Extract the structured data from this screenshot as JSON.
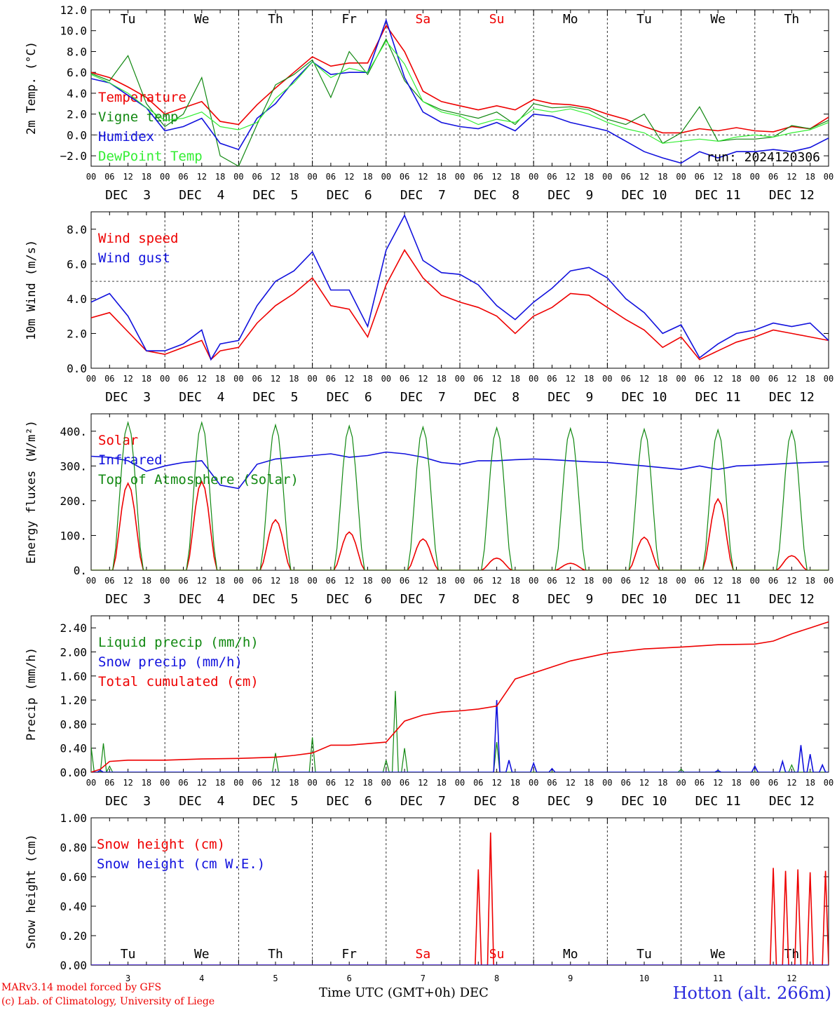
{
  "footer": {
    "model": "MARv3.14 model forced by GFS",
    "lab": "(c) Lab. of Climatology, University of Liege",
    "station": "Hotton (alt. 266m)",
    "time_axis": "Time UTC (GMT+0h) DEC"
  },
  "colors": {
    "red": "#ee0000",
    "green": "#118811",
    "blue": "#1111dd",
    "light_green": "#33ee33",
    "grid": "#444444"
  },
  "weekdays": [
    "Tu",
    "We",
    "Th",
    "Fr",
    "Sa",
    "Su",
    "Mo",
    "Tu",
    "We",
    "Th"
  ],
  "weekend_days": [
    4,
    5
  ],
  "dates": [
    "DEC  3",
    "DEC  4",
    "DEC  5",
    "DEC  6",
    "DEC  7",
    "DEC  8",
    "DEC  9",
    "DEC 10",
    "DEC 11",
    "DEC 12"
  ],
  "day_numbers": [
    "3",
    "4",
    "5",
    "6",
    "7",
    "8",
    "9",
    "10",
    "11",
    "12"
  ],
  "hour_ticks": [
    "00",
    "06",
    "12",
    "18"
  ],
  "chart_data": [
    {
      "type": "line",
      "ylabel": "2m Temp. (°C)",
      "ylim": [
        -3,
        12
      ],
      "yticks": [
        -2,
        0,
        2,
        4,
        6,
        8,
        10,
        12
      ],
      "ytick_labels": [
        "−2.0",
        "0.0",
        "2.0",
        "4.0",
        "6.0",
        "8.0",
        "10.0",
        "12.0"
      ],
      "ref_line": 0,
      "annotation": "run: 2024120306",
      "x": [
        0,
        6,
        12,
        18,
        24,
        30,
        36,
        42,
        48,
        54,
        60,
        66,
        72,
        78,
        84,
        90,
        96,
        102,
        108,
        114,
        120,
        126,
        132,
        138,
        144,
        150,
        156,
        162,
        168,
        174,
        180,
        186,
        192,
        198,
        204,
        210,
        216,
        222,
        228,
        234,
        240
      ],
      "series": [
        {
          "name": "Temperature",
          "color": "red",
          "values": [
            6.0,
            5.5,
            4.6,
            3.6,
            2.0,
            2.6,
            3.2,
            1.3,
            1.0,
            2.9,
            4.5,
            6.0,
            7.5,
            6.6,
            6.9,
            6.9,
            10.5,
            8.0,
            4.2,
            3.2,
            2.8,
            2.4,
            2.8,
            2.4,
            3.4,
            3.0,
            2.9,
            2.6,
            2.0,
            1.5,
            0.8,
            0.2,
            0.2,
            0.6,
            0.4,
            0.7,
            0.4,
            0.3,
            0.8,
            0.6,
            1.7
          ]
        },
        {
          "name": "Vigne temp",
          "color": "green",
          "values": [
            5.9,
            5.2,
            7.6,
            3.0,
            0.8,
            2.0,
            5.5,
            -2.0,
            -3.0,
            1.0,
            4.8,
            5.8,
            7.2,
            3.6,
            8.0,
            5.8,
            9.2,
            5.2,
            3.2,
            2.4,
            2.0,
            1.6,
            2.2,
            1.0,
            3.0,
            2.6,
            2.7,
            2.4,
            1.5,
            1.0,
            2.0,
            -0.8,
            0.2,
            2.7,
            -0.6,
            -0.4,
            -0.4,
            -0.2,
            0.9,
            0.6,
            1.4
          ]
        },
        {
          "name": "Humidex",
          "color": "blue",
          "values": [
            5.4,
            5.0,
            3.8,
            2.6,
            0.4,
            0.8,
            1.6,
            -0.8,
            -1.4,
            1.6,
            3.0,
            5.2,
            7.0,
            5.8,
            6.0,
            6.0,
            11.0,
            5.5,
            2.2,
            1.2,
            0.8,
            0.6,
            1.2,
            0.4,
            2.0,
            1.8,
            1.2,
            0.8,
            0.4,
            -0.6,
            -1.6,
            -2.2,
            -2.7,
            -1.6,
            -2.2,
            -1.6,
            -1.6,
            -1.4,
            -1.6,
            -1.2,
            -0.3
          ]
        },
        {
          "name": "DewPoint Temp",
          "color": "light_green",
          "values": [
            5.8,
            5.0,
            4.0,
            2.6,
            1.4,
            1.6,
            2.2,
            0.8,
            0.5,
            1.2,
            3.5,
            5.0,
            7.0,
            5.5,
            6.4,
            6.0,
            9.0,
            6.8,
            3.2,
            2.2,
            1.8,
            1.0,
            1.5,
            1.2,
            2.5,
            2.2,
            2.5,
            2.0,
            1.2,
            0.6,
            0.2,
            -0.8,
            -0.6,
            -0.4,
            -0.6,
            -0.2,
            0.0,
            -0.2,
            0.2,
            0.5,
            1.2
          ]
        }
      ]
    },
    {
      "type": "line",
      "ylabel": "10m Wind (m/s)",
      "ylim": [
        0,
        9
      ],
      "yticks": [
        0,
        2,
        4,
        6,
        8
      ],
      "ytick_labels": [
        "0.0",
        "2.0",
        "4.0",
        "6.0",
        "8.0"
      ],
      "ref_line": 5,
      "x": [
        0,
        6,
        12,
        18,
        24,
        30,
        36,
        39,
        42,
        48,
        54,
        60,
        66,
        72,
        78,
        84,
        90,
        96,
        102,
        108,
        114,
        120,
        126,
        132,
        138,
        144,
        150,
        156,
        162,
        168,
        174,
        180,
        186,
        192,
        198,
        204,
        210,
        216,
        222,
        228,
        234,
        240
      ],
      "series": [
        {
          "name": "Wind speed",
          "color": "red",
          "values": [
            2.9,
            3.2,
            2.1,
            1.0,
            0.8,
            1.2,
            1.6,
            0.5,
            1.0,
            1.2,
            2.6,
            3.6,
            4.3,
            5.2,
            3.6,
            3.4,
            1.8,
            4.8,
            6.8,
            5.2,
            4.2,
            3.8,
            3.5,
            3.0,
            2.0,
            3.0,
            3.5,
            4.3,
            4.2,
            3.5,
            2.8,
            2.2,
            1.2,
            1.8,
            0.5,
            1.0,
            1.5,
            1.8,
            2.2,
            2.0,
            1.8,
            1.6
          ]
        },
        {
          "name": "Wind gust",
          "color": "blue",
          "values": [
            3.8,
            4.3,
            3.0,
            1.0,
            1.0,
            1.4,
            2.2,
            0.5,
            1.4,
            1.6,
            3.6,
            5.0,
            5.6,
            6.7,
            4.5,
            4.5,
            2.4,
            6.8,
            8.8,
            6.2,
            5.5,
            5.4,
            4.8,
            3.6,
            2.8,
            3.8,
            4.6,
            5.6,
            5.8,
            5.2,
            4.0,
            3.2,
            2.0,
            2.5,
            0.6,
            1.4,
            2.0,
            2.2,
            2.6,
            2.4,
            2.6,
            1.6
          ]
        }
      ]
    },
    {
      "type": "line",
      "ylabel": "Energy fluxes (W/m²)",
      "ylim": [
        0,
        450
      ],
      "yticks": [
        0,
        100,
        200,
        300,
        400
      ],
      "ytick_labels": [
        "0.",
        "100.",
        "200.",
        "300.",
        "400."
      ],
      "series": [
        {
          "name": "Solar",
          "color": "red",
          "peaks": [
            [
              12,
              250
            ],
            [
              36,
              255
            ],
            [
              60,
              145
            ],
            [
              84,
              110
            ],
            [
              108,
              90
            ],
            [
              132,
              35
            ],
            [
              156,
              20
            ],
            [
              180,
              95
            ],
            [
              204,
              205
            ],
            [
              228,
              42
            ]
          ]
        },
        {
          "name": "Infrared",
          "color": "blue",
          "x": [
            0,
            6,
            12,
            18,
            24,
            30,
            36,
            42,
            48,
            54,
            60,
            66,
            72,
            78,
            84,
            90,
            96,
            102,
            108,
            114,
            120,
            126,
            132,
            138,
            144,
            150,
            156,
            162,
            168,
            174,
            180,
            186,
            192,
            198,
            204,
            210,
            216,
            222,
            228,
            234,
            240
          ],
          "values": [
            328,
            325,
            315,
            285,
            300,
            310,
            315,
            245,
            235,
            305,
            320,
            325,
            330,
            335,
            325,
            330,
            340,
            335,
            325,
            310,
            305,
            315,
            315,
            318,
            320,
            318,
            315,
            312,
            310,
            305,
            300,
            295,
            290,
            300,
            290,
            300,
            302,
            305,
            308,
            310,
            312
          ]
        },
        {
          "name": "Top of Atmosphere (Solar)",
          "color": "green",
          "peaks": [
            [
              12,
              425
            ],
            [
              36,
              425
            ],
            [
              60,
              418
            ],
            [
              84,
              415
            ],
            [
              108,
              412
            ],
            [
              132,
              410
            ],
            [
              156,
              408
            ],
            [
              180,
              406
            ],
            [
              204,
              404
            ],
            [
              228,
              402
            ]
          ]
        }
      ]
    },
    {
      "type": "line",
      "ylabel": "Precip (mm/h)",
      "ylim": [
        0,
        2.6
      ],
      "yticks": [
        0,
        0.4,
        0.8,
        1.2,
        1.6,
        2.0,
        2.4
      ],
      "ytick_labels": [
        "0.00",
        "0.40",
        "0.80",
        "1.20",
        "1.60",
        "2.00",
        "2.40"
      ],
      "series": [
        {
          "name": "Liquid precip (mm/h)",
          "color": "green",
          "spikes": [
            [
              0,
              0.42
            ],
            [
              4,
              0.48
            ],
            [
              6,
              0.1
            ],
            [
              60,
              0.32
            ],
            [
              72,
              0.58
            ],
            [
              96,
              0.2
            ],
            [
              99,
              1.35
            ],
            [
              102,
              0.4
            ],
            [
              132,
              0.5
            ],
            [
              192,
              0.05
            ],
            [
              228,
              0.12
            ]
          ]
        },
        {
          "name": "Snow precip (mm/h)",
          "color": "blue",
          "spikes": [
            [
              3,
              0.03
            ],
            [
              132,
              1.2
            ],
            [
              136,
              0.2
            ],
            [
              144,
              0.15
            ],
            [
              150,
              0.06
            ],
            [
              204,
              0.03
            ],
            [
              216,
              0.1
            ],
            [
              225,
              0.18
            ],
            [
              231,
              0.45
            ],
            [
              234,
              0.3
            ],
            [
              238,
              0.12
            ]
          ]
        },
        {
          "name": "Total cumulated (cm)",
          "color": "red",
          "x": [
            0,
            3,
            6,
            12,
            24,
            36,
            48,
            60,
            66,
            72,
            78,
            84,
            96,
            102,
            108,
            114,
            120,
            126,
            132,
            138,
            144,
            156,
            168,
            180,
            192,
            204,
            216,
            222,
            228,
            234,
            240
          ],
          "values": [
            0.0,
            0.05,
            0.18,
            0.2,
            0.2,
            0.22,
            0.23,
            0.25,
            0.28,
            0.32,
            0.45,
            0.45,
            0.5,
            0.85,
            0.95,
            1.0,
            1.02,
            1.05,
            1.1,
            1.55,
            1.65,
            1.85,
            1.98,
            2.05,
            2.08,
            2.12,
            2.13,
            2.18,
            2.3,
            2.4,
            2.5
          ]
        }
      ]
    },
    {
      "type": "line",
      "ylabel": "Snow height (cm)",
      "ylim": [
        0,
        1.0
      ],
      "yticks": [
        0,
        0.2,
        0.4,
        0.6,
        0.8,
        1.0
      ],
      "ytick_labels": [
        "0.00",
        "0.20",
        "0.40",
        "0.60",
        "0.80",
        "1.00"
      ],
      "series": [
        {
          "name": "Snow height (cm)",
          "color": "red",
          "spikes": [
            [
              126,
              0.65
            ],
            [
              130,
              0.9
            ],
            [
              222,
              0.66
            ],
            [
              226,
              0.64
            ],
            [
              230,
              0.65
            ],
            [
              234,
              0.63
            ],
            [
              239,
              0.64
            ]
          ]
        },
        {
          "name": "Snow height (cm W.E.)",
          "color": "blue",
          "spikes": []
        }
      ]
    }
  ]
}
